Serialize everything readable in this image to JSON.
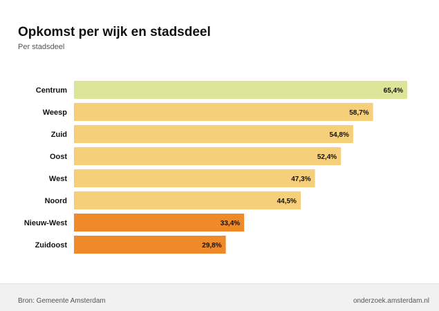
{
  "chart_data": {
    "type": "bar",
    "orientation": "horizontal",
    "title": "Opkomst per wijk en stadsdeel",
    "subtitle": "Per stadsdeel",
    "categories": [
      "Centrum",
      "Weesp",
      "Zuid",
      "Oost",
      "West",
      "Noord",
      "Nieuw-West",
      "Zuidoost"
    ],
    "values": [
      65.4,
      58.7,
      54.8,
      52.4,
      47.3,
      44.5,
      33.4,
      29.8
    ],
    "value_labels": [
      "65,4%",
      "58,7%",
      "54,8%",
      "52,4%",
      "47,3%",
      "44,5%",
      "33,4%",
      "29,8%"
    ],
    "bar_colors": [
      "#dde59a",
      "#f6cf7a",
      "#f6cf7a",
      "#f6cf7a",
      "#f6cf7a",
      "#f6cf7a",
      "#ee8a2a",
      "#ee8a2a"
    ],
    "xlim": [
      0,
      65.4
    ],
    "grid": false,
    "legend": "none"
  },
  "footer": {
    "source": "Bron: Gemeente Amsterdam",
    "site": "onderzoek.amsterdam.nl"
  }
}
